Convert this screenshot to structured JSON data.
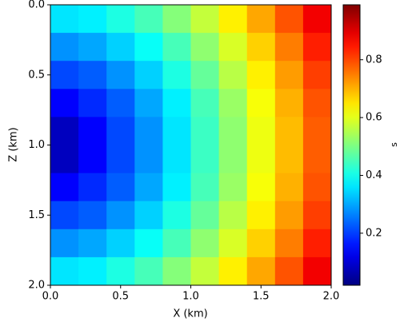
{
  "chart_data": {
    "type": "heatmap",
    "xlabel": "X (km)",
    "ylabel": "Z (km)",
    "colorbar_label": "s",
    "colormap": "jet",
    "invert_y": true,
    "x": [
      0.1,
      0.3,
      0.5,
      0.7,
      0.9,
      1.1,
      1.3,
      1.5,
      1.7,
      1.9
    ],
    "y": [
      0.1,
      0.3,
      0.5,
      0.7,
      0.9,
      1.1,
      1.3,
      1.5,
      1.7,
      1.9
    ],
    "values": [
      [
        0.36,
        0.37,
        0.41,
        0.45,
        0.51,
        0.57,
        0.64,
        0.71,
        0.79,
        0.88
      ],
      [
        0.28,
        0.3,
        0.34,
        0.39,
        0.45,
        0.52,
        0.59,
        0.67,
        0.75,
        0.84
      ],
      [
        0.21,
        0.23,
        0.28,
        0.34,
        0.41,
        0.48,
        0.56,
        0.64,
        0.72,
        0.81
      ],
      [
        0.14,
        0.18,
        0.23,
        0.3,
        0.37,
        0.45,
        0.53,
        0.62,
        0.7,
        0.79
      ],
      [
        0.08,
        0.14,
        0.21,
        0.28,
        0.36,
        0.44,
        0.52,
        0.61,
        0.69,
        0.78
      ],
      [
        0.08,
        0.14,
        0.21,
        0.28,
        0.36,
        0.44,
        0.52,
        0.61,
        0.69,
        0.78
      ],
      [
        0.14,
        0.18,
        0.23,
        0.3,
        0.37,
        0.45,
        0.53,
        0.62,
        0.7,
        0.79
      ],
      [
        0.21,
        0.23,
        0.28,
        0.34,
        0.41,
        0.48,
        0.56,
        0.64,
        0.72,
        0.81
      ],
      [
        0.28,
        0.3,
        0.34,
        0.39,
        0.45,
        0.52,
        0.59,
        0.67,
        0.75,
        0.84
      ],
      [
        0.36,
        0.37,
        0.41,
        0.45,
        0.51,
        0.57,
        0.64,
        0.71,
        0.79,
        0.88
      ]
    ],
    "xlim": [
      0,
      2
    ],
    "ylim": [
      0,
      2
    ],
    "xticks": [
      {
        "value": 0,
        "label": "0.0"
      },
      {
        "value": 0.5,
        "label": "0.5"
      },
      {
        "value": 1,
        "label": "1.0"
      },
      {
        "value": 1.5,
        "label": "1.5"
      },
      {
        "value": 2,
        "label": "2.0"
      }
    ],
    "yticks": [
      {
        "value": 0,
        "label": "0.0"
      },
      {
        "value": 0.5,
        "label": "0.5"
      },
      {
        "value": 1,
        "label": "1.0"
      },
      {
        "value": 1.5,
        "label": "1.5"
      },
      {
        "value": 2,
        "label": "2.0"
      }
    ],
    "clim": [
      0.02,
      0.99
    ],
    "cticks": [
      0.2,
      0.4,
      0.6,
      0.8
    ]
  }
}
